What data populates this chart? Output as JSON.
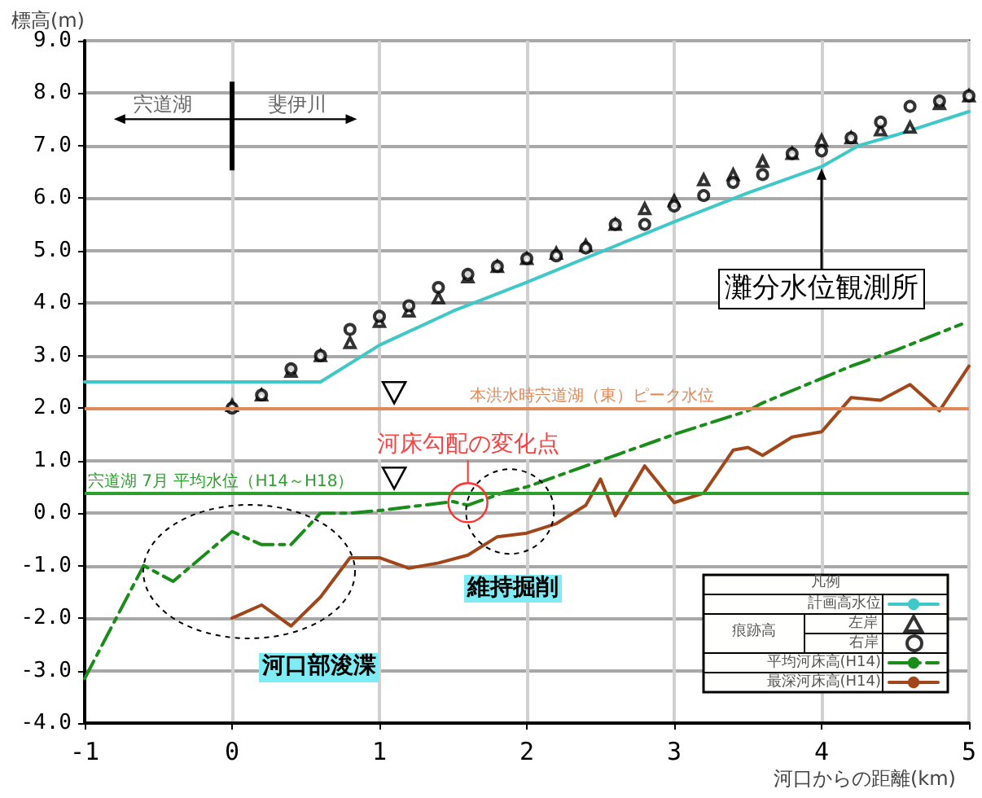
{
  "chart_data": {
    "type": "line",
    "xlabel": "河口からの距離(km)",
    "ylabel": "標高(m)",
    "legend_title": "凡例",
    "xlim": [
      -1,
      5
    ],
    "xticks": [
      -1,
      0,
      1,
      2,
      3,
      4,
      5
    ],
    "ylim": [
      -4,
      9
    ],
    "yticks": [
      {
        "value": -4,
        "label": "-4.0"
      },
      {
        "value": -3,
        "label": "-3.0"
      },
      {
        "value": -2,
        "label": "-2.0"
      },
      {
        "value": -1,
        "label": "-1.0"
      },
      {
        "value": 0,
        "label": "0.0"
      },
      {
        "value": 1,
        "label": "1.0"
      },
      {
        "value": 2,
        "label": "2.0"
      },
      {
        "value": 3,
        "label": "3.0"
      },
      {
        "value": 4,
        "label": "4.0"
      },
      {
        "value": 5,
        "label": "5.0"
      },
      {
        "value": 6,
        "label": "6.0"
      },
      {
        "value": 7,
        "label": "7.0"
      },
      {
        "value": 8,
        "label": "8.0"
      },
      {
        "value": 9,
        "label": "9.0"
      }
    ],
    "grid": true,
    "legend": "bottom right",
    "series": [
      {
        "name": "計画高水位",
        "color": "#40c8c8",
        "marker": "none",
        "line_style": "solid",
        "x": [
          -1,
          0.6,
          1.0,
          1.5,
          2.0,
          3.0,
          3.5,
          4.0,
          4.25,
          4.5,
          5.0
        ],
        "values": [
          2.5,
          2.5,
          3.2,
          3.85,
          4.4,
          5.55,
          6.1,
          6.6,
          7.0,
          7.2,
          7.65
        ]
      },
      {
        "name": "左岸",
        "type": "scatter",
        "color": "#000000",
        "marker": "triangle",
        "x": [
          0,
          0.2,
          0.4,
          0.6,
          0.8,
          1.0,
          1.2,
          1.4,
          1.6,
          1.8,
          2.0,
          2.2,
          2.4,
          2.6,
          2.8,
          3.0,
          3.2,
          3.4,
          3.6,
          3.8,
          4.0,
          4.2,
          4.4,
          4.6,
          4.8,
          5.0
        ],
        "values": [
          2.05,
          2.25,
          2.7,
          3.0,
          3.25,
          3.65,
          3.85,
          4.1,
          4.5,
          4.7,
          4.85,
          4.95,
          5.1,
          5.5,
          5.8,
          5.95,
          6.35,
          6.45,
          6.7,
          6.85,
          7.1,
          7.15,
          7.3,
          7.35,
          7.8,
          7.95
        ]
      },
      {
        "name": "右岸",
        "type": "scatter",
        "color": "#000000",
        "marker": "circle",
        "x": [
          0,
          0.2,
          0.4,
          0.6,
          0.8,
          1.0,
          1.2,
          1.4,
          1.6,
          1.8,
          2.0,
          2.2,
          2.4,
          2.6,
          2.8,
          3.0,
          3.2,
          3.4,
          3.6,
          3.8,
          4.0,
          4.2,
          4.4,
          4.6,
          4.8,
          5.0
        ],
        "values": [
          2.0,
          2.25,
          2.75,
          3.0,
          3.5,
          3.75,
          3.95,
          4.3,
          4.55,
          4.7,
          4.85,
          4.9,
          5.05,
          5.5,
          5.5,
          5.85,
          6.05,
          6.3,
          6.45,
          6.85,
          6.9,
          7.15,
          7.45,
          7.75,
          7.85,
          7.95
        ]
      },
      {
        "name": "平均河床高(H14)",
        "color": "#1a8c1a",
        "marker": "none",
        "line_style": "dashed",
        "x": [
          -1,
          -0.6,
          -0.5,
          -0.4,
          0,
          0.2,
          0.4,
          0.6,
          0.8,
          1.0,
          1.5,
          1.6,
          1.85,
          2.0,
          2.5,
          3.0,
          3.5,
          3.6,
          4.2,
          4.5,
          4.95
        ],
        "values": [
          -3.15,
          -1.0,
          -1.15,
          -1.3,
          -0.35,
          -0.6,
          -0.6,
          0.0,
          0.0,
          0.05,
          0.22,
          0.15,
          0.4,
          0.5,
          1.0,
          1.5,
          1.95,
          2.1,
          2.8,
          3.1,
          3.6
        ]
      },
      {
        "name": "最深河床高(H14)",
        "color": "#a0461a",
        "marker": "none",
        "line_style": "solid",
        "x": [
          0,
          0.2,
          0.4,
          0.6,
          0.8,
          1.0,
          1.2,
          1.4,
          1.6,
          1.8,
          2.0,
          2.2,
          2.4,
          2.5,
          2.6,
          2.8,
          3.0,
          3.2,
          3.4,
          3.5,
          3.6,
          3.8,
          4.0,
          4.2,
          4.4,
          4.6,
          4.8,
          5.0
        ],
        "values": [
          -2.0,
          -1.75,
          -2.15,
          -1.6,
          -0.85,
          -0.85,
          -1.05,
          -0.95,
          -0.8,
          -0.45,
          -0.38,
          -0.2,
          0.15,
          0.65,
          -0.05,
          0.9,
          0.2,
          0.38,
          1.2,
          1.25,
          1.1,
          1.45,
          1.55,
          2.2,
          2.15,
          2.45,
          1.95,
          2.8
        ]
      }
    ],
    "ref_lines": [
      {
        "axis": "y",
        "value": 2.0,
        "label": "本洪水時宍道湖（東）ピーク水位",
        "color": "#e0895a"
      },
      {
        "axis": "y",
        "value": 0.37,
        "label": "宍道湖 7月 平均水位（H14～H18）",
        "color": "#2e9e2e"
      }
    ],
    "annotations": [
      "宍道湖",
      "斐伊川",
      {
        "text": "灘分水位観測所",
        "x": 4.0,
        "y": 6.6
      },
      {
        "text": "河床勾配の変化点",
        "x": 1.6,
        "y": 0.2
      },
      "河口部浚渫",
      "維持掘削",
      "痕跡高"
    ]
  }
}
